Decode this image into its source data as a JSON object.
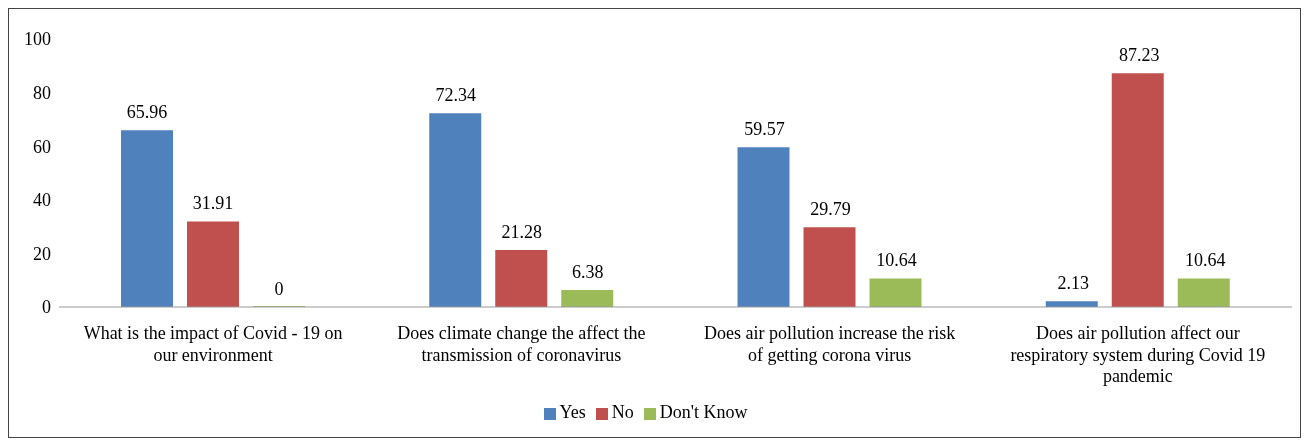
{
  "chart_data": {
    "type": "bar",
    "categories": [
      "What is the impact of Covid - 19 on our environment",
      "Does climate change the affect the transmission of coronavirus",
      "Does air pollution increase the risk of getting corona virus",
      "Does air pollution affect our respiratory system during Covid 19 pandemic"
    ],
    "series": [
      {
        "name": "Yes",
        "color": "#4f81bd",
        "values": [
          65.96,
          72.34,
          59.57,
          2.13
        ]
      },
      {
        "name": "No",
        "color": "#c0504d",
        "values": [
          31.91,
          21.28,
          29.79,
          87.23
        ]
      },
      {
        "name": "Don't Know",
        "color": "#9bbb59",
        "values": [
          0,
          6.38,
          10.64,
          10.64
        ]
      }
    ],
    "ylim": [
      0,
      100
    ],
    "yticks": [
      0,
      20,
      40,
      60,
      80,
      100
    ],
    "grid": false,
    "legend": "bottom",
    "data_labels": true
  }
}
